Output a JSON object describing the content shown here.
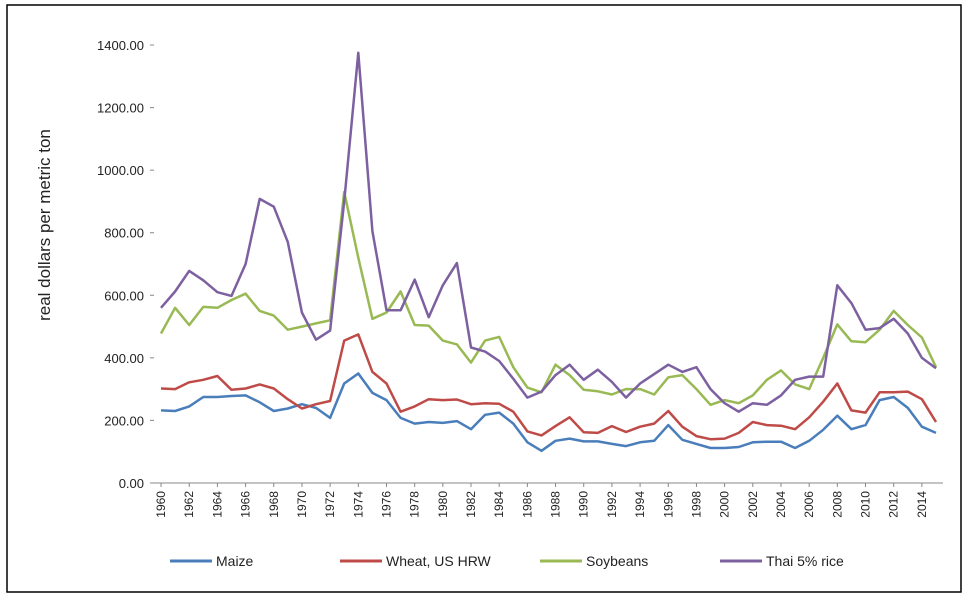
{
  "chart_data": {
    "type": "line",
    "y_label": "real dollars per metric ton",
    "x": [
      1960,
      1961,
      1962,
      1963,
      1964,
      1965,
      1966,
      1967,
      1968,
      1969,
      1970,
      1971,
      1972,
      1973,
      1974,
      1975,
      1976,
      1977,
      1978,
      1979,
      1980,
      1981,
      1982,
      1983,
      1984,
      1985,
      1986,
      1987,
      1988,
      1989,
      1990,
      1991,
      1992,
      1993,
      1994,
      1995,
      1996,
      1997,
      1998,
      1999,
      2000,
      2001,
      2002,
      2003,
      2004,
      2005,
      2006,
      2007,
      2008,
      2009,
      2010,
      2011,
      2012,
      2013,
      2014,
      2015
    ],
    "xlim": [
      1959.5,
      2015.5
    ],
    "xticks": [
      1960,
      1962,
      1964,
      1966,
      1968,
      1970,
      1972,
      1974,
      1976,
      1978,
      1980,
      1982,
      1984,
      1986,
      1988,
      1990,
      1992,
      1994,
      1996,
      1998,
      2000,
      2002,
      2004,
      2006,
      2008,
      2010,
      2012,
      2014
    ],
    "ylim": [
      0,
      1400
    ],
    "yticks": [
      {
        "value": 0,
        "label": "0.00"
      },
      {
        "value": 200,
        "label": "200.00"
      },
      {
        "value": 400,
        "label": "400.00"
      },
      {
        "value": 600,
        "label": "600.00"
      },
      {
        "value": 800,
        "label": "800.00"
      },
      {
        "value": 1000,
        "label": "1000.00"
      },
      {
        "value": 1200,
        "label": "1200.00"
      },
      {
        "value": 1400,
        "label": "1400.00"
      }
    ],
    "series": [
      {
        "name": "Maize",
        "color": "#4a7ebb",
        "values": [
          232,
          230,
          245,
          275,
          275,
          278,
          280,
          258,
          230,
          238,
          252,
          240,
          208,
          318,
          350,
          288,
          265,
          208,
          190,
          195,
          192,
          198,
          172,
          218,
          225,
          190,
          130,
          103,
          135,
          142,
          133,
          133,
          125,
          118,
          130,
          135,
          185,
          138,
          125,
          112,
          112,
          115,
          130,
          132,
          132,
          112,
          135,
          170,
          215,
          172,
          185,
          265,
          275,
          240,
          180,
          160
        ]
      },
      {
        "name": "Wheat, US HRW",
        "color": "#be4b48",
        "values": [
          302,
          300,
          322,
          330,
          342,
          298,
          302,
          315,
          302,
          268,
          238,
          252,
          262,
          455,
          475,
          355,
          318,
          228,
          245,
          268,
          265,
          267,
          252,
          255,
          253,
          228,
          165,
          152,
          182,
          210,
          162,
          160,
          182,
          163,
          180,
          190,
          230,
          180,
          150,
          140,
          142,
          160,
          195,
          185,
          183,
          172,
          210,
          260,
          318,
          232,
          225,
          290,
          290,
          292,
          268,
          195
        ]
      },
      {
        "name": "Soybeans",
        "color": "#98b954",
        "values": [
          478,
          560,
          505,
          563,
          560,
          585,
          605,
          550,
          535,
          490,
          500,
          510,
          520,
          930,
          720,
          525,
          545,
          612,
          505,
          503,
          455,
          443,
          385,
          455,
          467,
          370,
          305,
          290,
          378,
          345,
          298,
          293,
          283,
          300,
          300,
          283,
          338,
          345,
          300,
          250,
          265,
          255,
          280,
          330,
          360,
          315,
          300,
          400,
          507,
          453,
          450,
          490,
          550,
          505,
          465,
          370
        ]
      },
      {
        "name": "Thai 5% rice",
        "color": "#7d60a0",
        "values": [
          560,
          612,
          678,
          648,
          610,
          598,
          700,
          908,
          883,
          770,
          545,
          458,
          487,
          900,
          1375,
          805,
          552,
          552,
          650,
          530,
          632,
          703,
          433,
          420,
          390,
          333,
          273,
          292,
          345,
          378,
          330,
          362,
          323,
          273,
          318,
          348,
          378,
          355,
          370,
          300,
          255,
          228,
          255,
          250,
          280,
          330,
          340,
          340,
          632,
          575,
          490,
          495,
          525,
          478,
          400,
          367
        ]
      }
    ]
  }
}
